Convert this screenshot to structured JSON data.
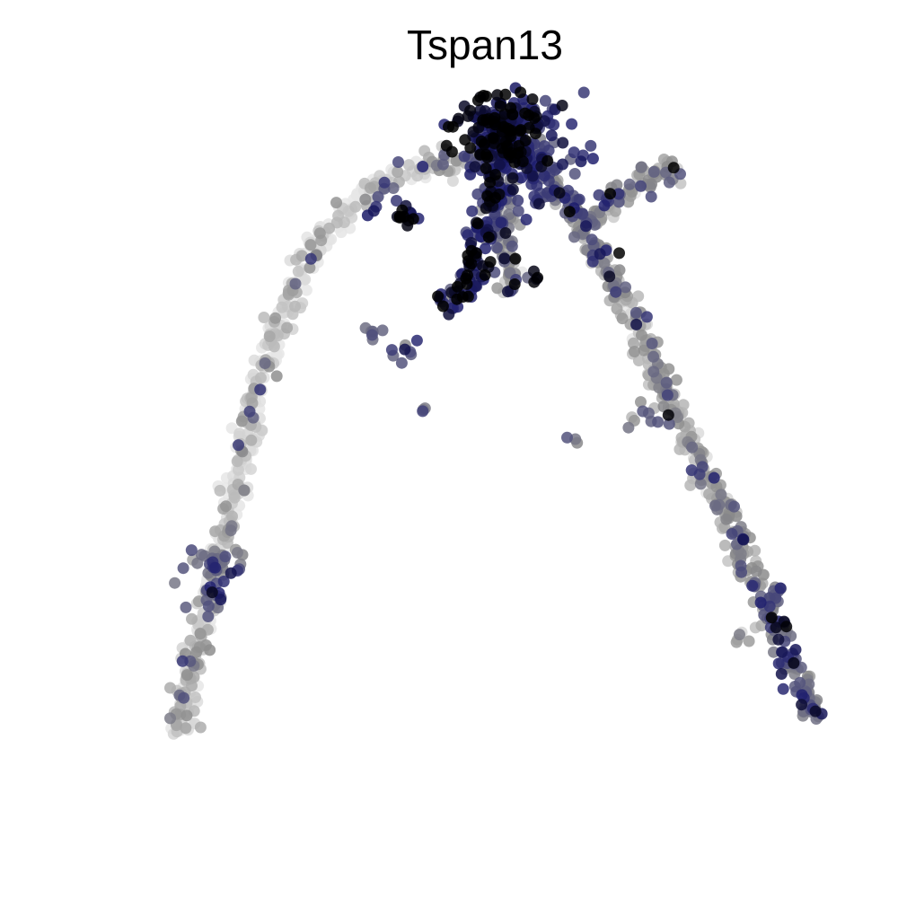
{
  "chart_data": {
    "type": "scatter",
    "title": "Tspan13",
    "xlabel": "",
    "ylabel": "",
    "axes_visible": false,
    "grid": false,
    "legend": "none",
    "value_range": [
      0,
      1
    ],
    "colors": {
      "low": "#e6e6e6",
      "mid": "#8c8c8c",
      "high_mid": "#1c1c6e",
      "high": "#000000"
    },
    "trajectory_paths": [
      {
        "name": "left-arm",
        "points": [
          [
            -0.88,
            -0.92
          ],
          [
            -0.86,
            -0.8
          ],
          [
            -0.83,
            -0.65
          ],
          [
            -0.79,
            -0.48
          ],
          [
            -0.74,
            -0.28
          ],
          [
            -0.7,
            -0.08
          ],
          [
            -0.66,
            0.12
          ],
          [
            -0.6,
            0.32
          ],
          [
            -0.53,
            0.5
          ],
          [
            -0.44,
            0.64
          ],
          [
            -0.33,
            0.74
          ],
          [
            -0.2,
            0.8
          ],
          [
            -0.06,
            0.82
          ],
          [
            0.05,
            0.86
          ]
        ],
        "weights": [
          0.1,
          0.22,
          0.18,
          0.1,
          0.05,
          0.04,
          0.03,
          0.03,
          0.03,
          0.04,
          0.05,
          0.1,
          0.35,
          0.8
        ]
      },
      {
        "name": "right-arm",
        "points": [
          [
            0.05,
            0.86
          ],
          [
            0.16,
            0.76
          ],
          [
            0.24,
            0.62
          ],
          [
            0.32,
            0.48
          ],
          [
            0.4,
            0.32
          ],
          [
            0.47,
            0.14
          ],
          [
            0.55,
            -0.04
          ],
          [
            0.63,
            -0.22
          ],
          [
            0.71,
            -0.4
          ],
          [
            0.78,
            -0.56
          ],
          [
            0.84,
            -0.72
          ],
          [
            0.89,
            -0.87
          ]
        ],
        "weights": [
          0.8,
          0.45,
          0.4,
          0.35,
          0.3,
          0.28,
          0.3,
          0.35,
          0.4,
          0.48,
          0.55,
          0.6
        ]
      },
      {
        "name": "right-tip",
        "points": [
          [
            0.24,
            0.62
          ],
          [
            0.34,
            0.7
          ],
          [
            0.44,
            0.76
          ],
          [
            0.52,
            0.8
          ]
        ],
        "weights": [
          0.4,
          0.4,
          0.35,
          0.3
        ]
      },
      {
        "name": "inner-branch",
        "points": [
          [
            0.02,
            0.86
          ],
          [
            -0.01,
            0.7
          ],
          [
            -0.04,
            0.56
          ],
          [
            -0.06,
            0.46
          ],
          [
            -0.1,
            0.4
          ],
          [
            -0.14,
            0.36
          ]
        ],
        "weights": [
          0.85,
          0.75,
          0.8,
          0.92,
          0.85,
          0.7
        ]
      },
      {
        "name": "small-branch",
        "points": [
          [
            0.02,
            0.7
          ],
          [
            0.03,
            0.58
          ],
          [
            0.04,
            0.5
          ],
          [
            0.05,
            0.42
          ]
        ],
        "weights": [
          0.5,
          0.45,
          0.5,
          0.55
        ]
      }
    ],
    "clusters": [
      {
        "x": 0.02,
        "y": 0.92,
        "spread": 0.06,
        "n": 150,
        "w": 0.9
      },
      {
        "x": 0.08,
        "y": 0.82,
        "spread": 0.09,
        "n": 120,
        "w": 0.72
      },
      {
        "x": -0.24,
        "y": 0.66,
        "spread": 0.025,
        "n": 14,
        "w": 0.92
      },
      {
        "x": -0.32,
        "y": 0.68,
        "spread": 0.02,
        "n": 5,
        "w": 0.8
      },
      {
        "x": 0.13,
        "y": 0.46,
        "spread": 0.01,
        "n": 4,
        "w": 0.95
      },
      {
        "x": -0.33,
        "y": 0.31,
        "spread": 0.018,
        "n": 6,
        "w": 0.55
      },
      {
        "x": -0.25,
        "y": 0.24,
        "spread": 0.025,
        "n": 8,
        "w": 0.65
      },
      {
        "x": -0.2,
        "y": 0.07,
        "spread": 0.01,
        "n": 3,
        "w": 0.7
      },
      {
        "x": 0.23,
        "y": -0.02,
        "spread": 0.01,
        "n": 3,
        "w": 0.4
      },
      {
        "x": 0.42,
        "y": 0.04,
        "spread": 0.025,
        "n": 8,
        "w": 0.45
      },
      {
        "x": -0.78,
        "y": -0.4,
        "spread": 0.05,
        "n": 30,
        "w": 0.6
      },
      {
        "x": -0.77,
        "y": -0.48,
        "spread": 0.04,
        "n": 10,
        "w": 0.7
      },
      {
        "x": 0.69,
        "y": -0.62,
        "spread": 0.02,
        "n": 6,
        "w": 0.25
      },
      {
        "x": 0.79,
        "y": -0.47,
        "spread": 0.01,
        "n": 3,
        "w": 0.75
      }
    ],
    "xlim": [
      -1,
      1
    ],
    "ylim": [
      -1,
      1
    ]
  }
}
